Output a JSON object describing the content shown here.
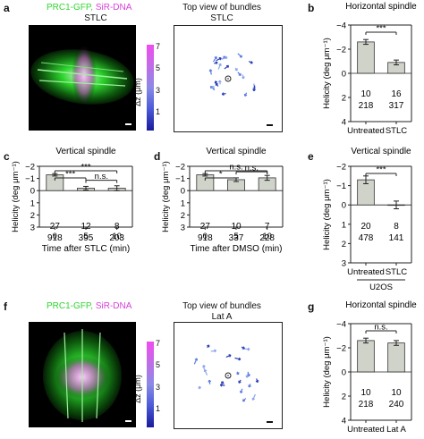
{
  "panels": {
    "a": {
      "label": "a",
      "legend_green": "PRC1-GFP,",
      "legend_magenta": "SiR-DNA",
      "condition": "STLC",
      "top_title": "Top view of bundles",
      "top_condition": "STLC",
      "cbar_label": "Δz (μm)",
      "cbar_ticks": [
        "7",
        "5",
        "3",
        "1"
      ]
    },
    "f": {
      "label": "f",
      "legend_green": "PRC1-GFP,",
      "legend_magenta": "SiR-DNA",
      "top_title": "Top view of bundles",
      "top_condition": "Lat A",
      "cbar_label": "Δz (μm)",
      "cbar_ticks": [
        "7",
        "5",
        "3",
        "1"
      ]
    }
  },
  "colors": {
    "bar_fill": "#cfd3c9",
    "bar_stroke": "#333333",
    "green": "#2fd62f",
    "magenta": "#d93fd9",
    "arrow": "#4a6fd8"
  },
  "chart_data": [
    {
      "id": "b",
      "label": "b",
      "type": "bar",
      "title": "Horizontal spindle",
      "ylabel": "Helicity (deg μm⁻¹)",
      "ylim": [
        -4,
        4
      ],
      "yticks": [
        "−4",
        "−2",
        "0",
        "2",
        "4"
      ],
      "categories": [
        "Untreated",
        "STLC"
      ],
      "values": [
        -2.6,
        -0.9
      ],
      "errors": [
        0.2,
        0.2
      ],
      "n_cells": [
        "10",
        "16"
      ],
      "n_bundles": [
        "218",
        "317"
      ],
      "xlabel": "",
      "sig": [
        {
          "from": 0,
          "to": 1,
          "text": "***"
        }
      ]
    },
    {
      "id": "c",
      "label": "c",
      "type": "bar",
      "title": "Vertical spindle",
      "ylabel": "Helicity (deg μm⁻¹)",
      "ylim": [
        -2,
        3
      ],
      "yticks": [
        "−2",
        "−1",
        "0",
        "1",
        "2",
        "3"
      ],
      "categories": [
        "0",
        "5",
        "10"
      ],
      "values": [
        -1.3,
        -0.2,
        -0.2
      ],
      "errors": [
        0.1,
        0.15,
        0.2
      ],
      "n_cells": [
        "27",
        "12",
        "8"
      ],
      "n_bundles": [
        "918",
        "395",
        "203"
      ],
      "xlabel": "Time after STLC (min)",
      "sig": [
        {
          "from": 0,
          "to": 2,
          "text": "***"
        },
        {
          "from": 0,
          "to": 1,
          "text": "***"
        },
        {
          "from": 1,
          "to": 2,
          "text": "n.s."
        }
      ]
    },
    {
      "id": "d",
      "label": "d",
      "type": "bar",
      "title": "Vertical spindle",
      "ylabel": "Helicity (deg μm⁻¹)",
      "ylim": [
        -2,
        3
      ],
      "yticks": [
        "−2",
        "−1",
        "0",
        "1",
        "2",
        "3"
      ],
      "categories": [
        "0",
        "5",
        "10"
      ],
      "values": [
        -1.3,
        -0.9,
        -1.05
      ],
      "errors": [
        0.1,
        0.15,
        0.2
      ],
      "n_cells": [
        "27",
        "10",
        "7"
      ],
      "n_bundles": [
        "918",
        "337",
        "228"
      ],
      "xlabel": "Time after DMSO (min)",
      "sig": [
        {
          "from": 0,
          "to": 2,
          "text": "n.s."
        },
        {
          "from": 0,
          "to": 1,
          "text": "*"
        },
        {
          "from": 1,
          "to": 2,
          "text": "n.s."
        }
      ]
    },
    {
      "id": "e",
      "label": "e",
      "type": "bar",
      "title": "Vertical spindle",
      "ylabel": "Helicity (deg μm⁻¹)",
      "ylim": [
        -2,
        3
      ],
      "yticks": [
        "−2",
        "−1",
        "0",
        "1",
        "2",
        "3"
      ],
      "categories": [
        "Untreated",
        "STLC"
      ],
      "values": [
        -1.3,
        0.0
      ],
      "errors": [
        0.2,
        0.2
      ],
      "n_cells": [
        "20",
        "8"
      ],
      "n_bundles": [
        "478",
        "141"
      ],
      "xlabel": "",
      "group_label": "U2OS",
      "sig": [
        {
          "from": 0,
          "to": 1,
          "text": "***"
        }
      ]
    },
    {
      "id": "g",
      "label": "g",
      "type": "bar",
      "title": "Horizontal spindle",
      "ylabel": "Helicity (deg μm⁻¹)",
      "ylim": [
        -4,
        4
      ],
      "yticks": [
        "−4",
        "−2",
        "0",
        "2",
        "4"
      ],
      "categories": [
        "Untreated",
        "Lat A"
      ],
      "values": [
        -2.6,
        -2.4
      ],
      "errors": [
        0.2,
        0.2
      ],
      "n_cells": [
        "10",
        "10"
      ],
      "n_bundles": [
        "218",
        "240"
      ],
      "xlabel": "",
      "sig": [
        {
          "from": 0,
          "to": 1,
          "text": "n.s."
        }
      ]
    }
  ]
}
